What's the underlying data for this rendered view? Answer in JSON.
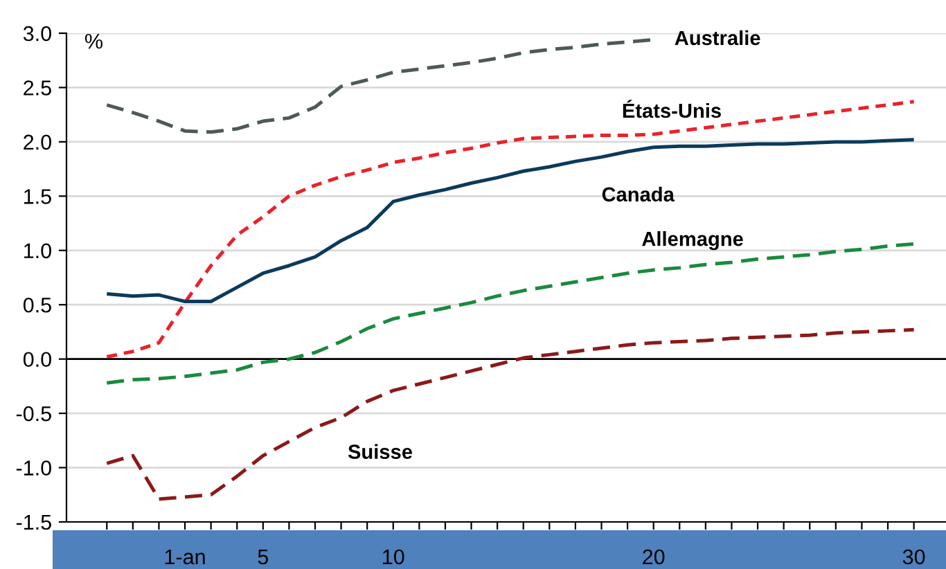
{
  "chart_data": {
    "type": "line",
    "ylabel": "%",
    "categories": [
      null,
      null,
      null,
      "1-an",
      null,
      null,
      "5",
      null,
      null,
      null,
      null,
      "10",
      null,
      null,
      null,
      null,
      null,
      null,
      null,
      null,
      null,
      "20",
      null,
      null,
      null,
      null,
      null,
      null,
      null,
      null,
      null,
      "30"
    ],
    "series": [
      {
        "name": "Australie",
        "color": "#4d5a58",
        "line_style": "dashed",
        "values": [
          2.34,
          2.27,
          2.19,
          2.1,
          2.09,
          2.12,
          2.19,
          2.22,
          2.32,
          2.51,
          2.57,
          2.64,
          2.67,
          2.7,
          2.73,
          2.77,
          2.82,
          2.85,
          2.87,
          2.9,
          2.92,
          2.94,
          null,
          null,
          null,
          null,
          null,
          null,
          null,
          null,
          null,
          null
        ]
      },
      {
        "name": "États-Unis",
        "color": "#e8232b",
        "line_style": "dotted",
        "values": [
          0.02,
          0.07,
          0.15,
          0.52,
          0.86,
          1.14,
          1.31,
          1.5,
          1.6,
          1.68,
          1.74,
          1.81,
          1.85,
          1.9,
          1.94,
          1.99,
          2.03,
          2.04,
          2.05,
          2.06,
          2.06,
          2.07,
          2.1,
          2.13,
          2.16,
          2.19,
          2.22,
          2.25,
          2.28,
          2.31,
          2.34,
          2.37
        ]
      },
      {
        "name": "Canada",
        "color": "#0b3a5c",
        "line_style": "solid",
        "values": [
          0.6,
          0.58,
          0.59,
          0.53,
          0.53,
          0.66,
          0.79,
          0.86,
          0.94,
          1.09,
          1.21,
          1.45,
          1.51,
          1.56,
          1.62,
          1.67,
          1.73,
          1.77,
          1.82,
          1.86,
          1.91,
          1.95,
          1.96,
          1.96,
          1.97,
          1.98,
          1.98,
          1.99,
          2.0,
          2.0,
          2.01,
          2.02
        ]
      },
      {
        "name": "Allemagne",
        "color": "#1a8a3e",
        "line_style": "dashed",
        "values": [
          -0.22,
          -0.19,
          -0.18,
          -0.16,
          -0.13,
          -0.1,
          -0.03,
          0.0,
          0.06,
          0.16,
          0.28,
          0.37,
          0.42,
          0.47,
          0.52,
          0.58,
          0.63,
          0.67,
          0.71,
          0.75,
          0.79,
          0.82,
          0.84,
          0.87,
          0.89,
          0.92,
          0.94,
          0.96,
          0.99,
          1.01,
          1.04,
          1.06
        ]
      },
      {
        "name": "Suisse",
        "color": "#8b1a1a",
        "line_style": "dashed",
        "values": [
          -0.96,
          -0.89,
          -1.29,
          -1.27,
          -1.25,
          -1.08,
          -0.89,
          -0.76,
          -0.63,
          -0.54,
          -0.39,
          -0.29,
          -0.23,
          -0.17,
          -0.11,
          -0.05,
          0.01,
          0.04,
          0.07,
          0.1,
          0.13,
          0.15,
          0.16,
          0.17,
          0.19,
          0.2,
          0.21,
          0.22,
          0.24,
          0.25,
          0.26,
          0.27
        ]
      }
    ],
    "ylim": [
      -1.5,
      3.0
    ],
    "yticks": [
      {
        "value": -1.5,
        "label": "-1.5"
      },
      {
        "value": -1.0,
        "label": "-1.0"
      },
      {
        "value": -0.5,
        "label": "-0.5"
      },
      {
        "value": 0.0,
        "label": "0.0"
      },
      {
        "value": 0.5,
        "label": "0.5"
      },
      {
        "value": 1.0,
        "label": "1.0"
      },
      {
        "value": 1.5,
        "label": "1.5"
      },
      {
        "value": 2.0,
        "label": "2.0"
      },
      {
        "value": 2.5,
        "label": "2.5"
      },
      {
        "value": 3.0,
        "label": "3.0"
      }
    ],
    "ref_lines": [
      {
        "axis": "y",
        "value": 0,
        "color": "#000000"
      }
    ],
    "grid": "y",
    "legend": false
  }
}
